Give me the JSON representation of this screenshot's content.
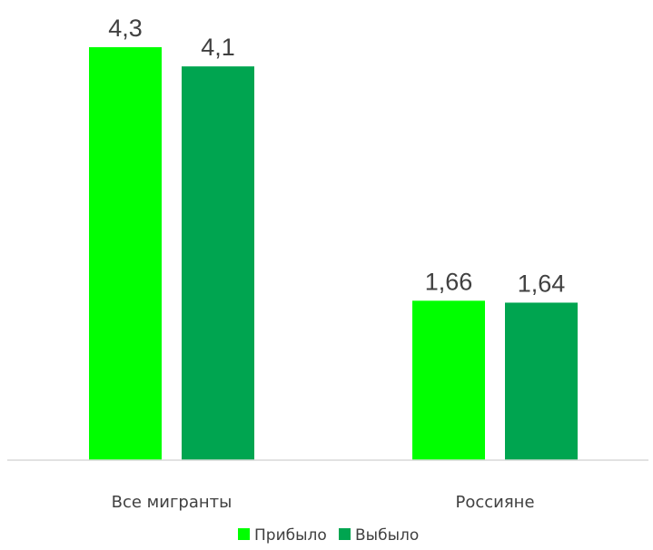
{
  "chart_data": {
    "type": "bar",
    "categories": [
      "Все мигранты",
      "Россияне"
    ],
    "series": [
      {
        "name": "Прибыло",
        "values": [
          4.3,
          1.66
        ],
        "labels": [
          "4,3",
          "1,66"
        ],
        "color": "#00ff00"
      },
      {
        "name": "Выбыло",
        "values": [
          4.1,
          1.64
        ],
        "labels": [
          "4,1",
          "1,64"
        ],
        "color": "#00a550"
      }
    ],
    "ylim": [
      0,
      4.3
    ],
    "grid": false,
    "legend_position": "bottom",
    "axis_color": "#d9d9d9",
    "text_color": "#404040"
  }
}
